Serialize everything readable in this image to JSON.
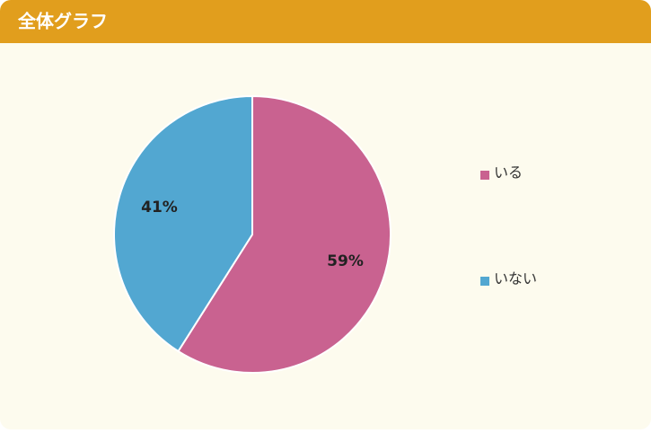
{
  "chart_data": {
    "type": "pie",
    "title": "全体グラフ",
    "categories": [
      "いる",
      "いない"
    ],
    "values": [
      59,
      41
    ],
    "value_labels": [
      "59%",
      "41%"
    ],
    "colors": [
      "#c96290",
      "#52a7d1"
    ],
    "legend": "right"
  }
}
